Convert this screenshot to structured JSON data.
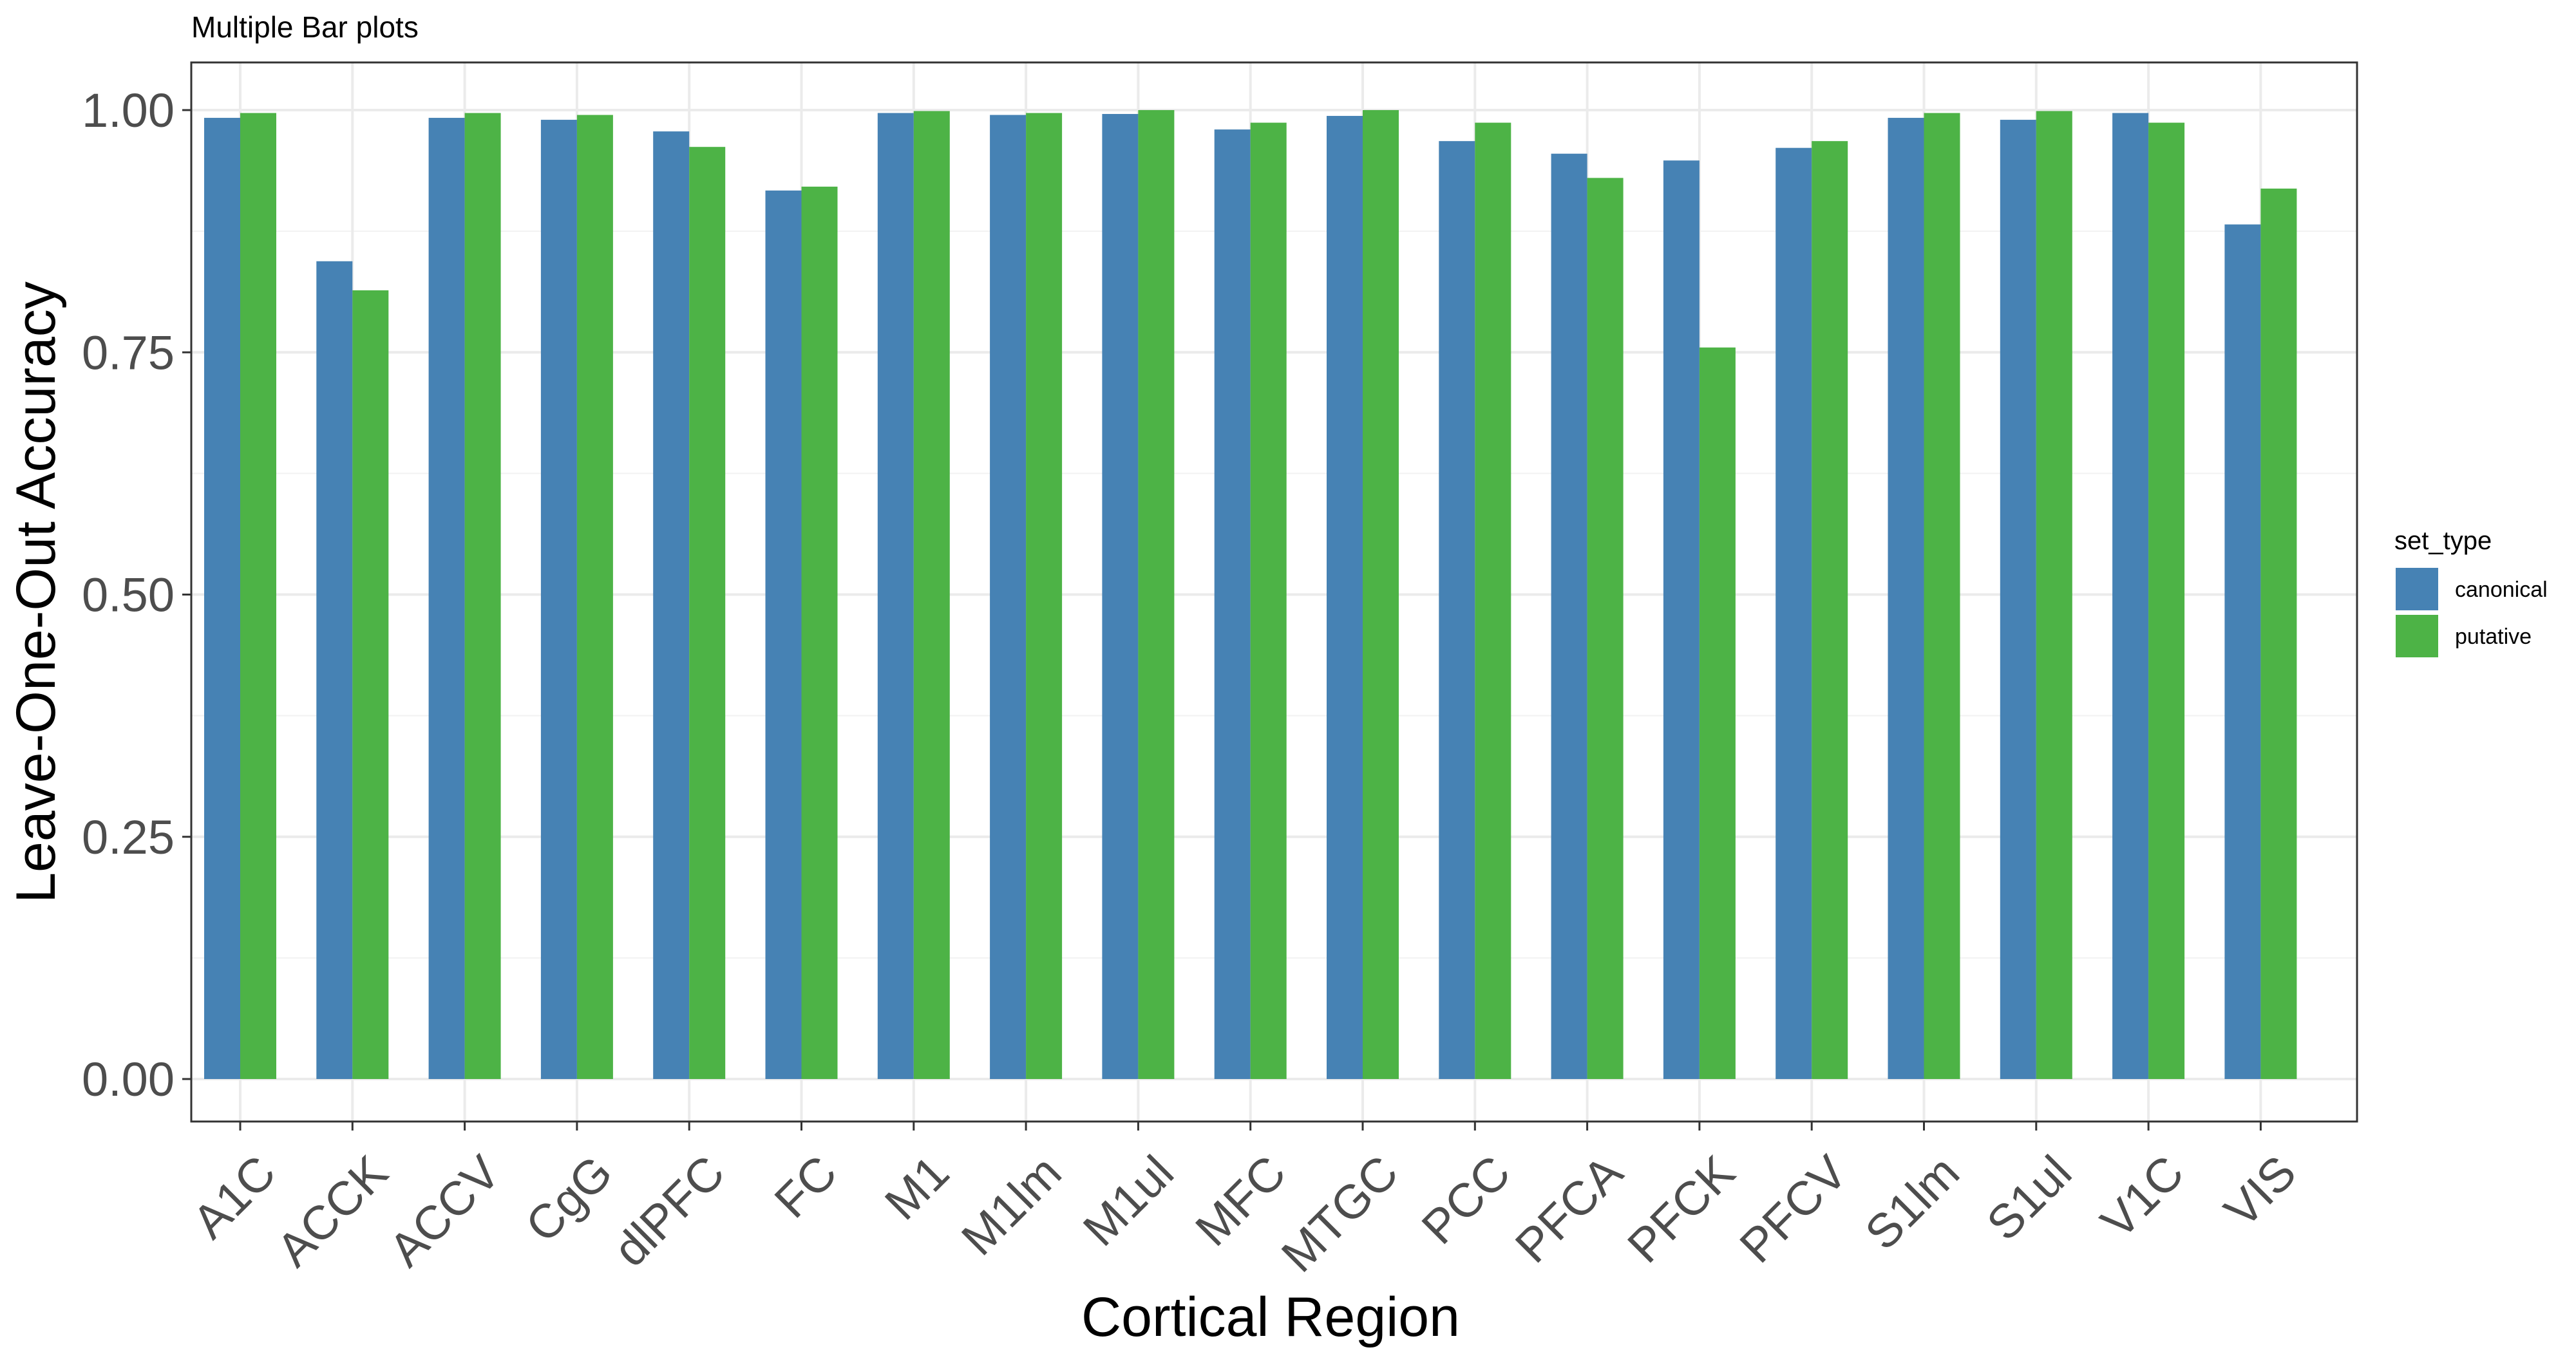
{
  "chart_data": {
    "type": "bar",
    "title": "Multiple Bar plots",
    "xlabel": "Cortical Region",
    "ylabel": "Leave-One-Out Accuracy",
    "ylim": [
      0,
      1.0
    ],
    "yticks": [
      "0.00",
      "0.25",
      "0.50",
      "0.75",
      "1.00"
    ],
    "ytick_values": [
      0,
      0.25,
      0.5,
      0.75,
      1.0
    ],
    "grid": true,
    "categories": [
      "A1C",
      "ACCK",
      "ACCV",
      "CgG",
      "dlPFC",
      "FC",
      "M1",
      "M1lm",
      "M1ul",
      "MFC",
      "MTGC",
      "PCC",
      "PFCA",
      "PFCK",
      "PFCV",
      "S1lm",
      "S1ul",
      "V1C",
      "VIS"
    ],
    "legend_title": "set_type",
    "legend_position": "right",
    "series": [
      {
        "name": "canonical",
        "color": "#4682B4",
        "values": [
          0.992,
          0.844,
          0.992,
          0.99,
          0.978,
          0.917,
          0.997,
          0.995,
          0.996,
          0.98,
          0.994,
          0.968,
          0.955,
          0.948,
          0.961,
          0.992,
          0.99,
          0.997,
          0.882
        ]
      },
      {
        "name": "putative",
        "color": "#4DB346",
        "values": [
          0.997,
          0.814,
          0.997,
          0.995,
          0.962,
          0.921,
          0.999,
          0.997,
          1.0,
          0.987,
          1.0,
          0.987,
          0.93,
          0.755,
          0.968,
          0.997,
          0.999,
          0.987,
          0.919
        ]
      }
    ]
  }
}
